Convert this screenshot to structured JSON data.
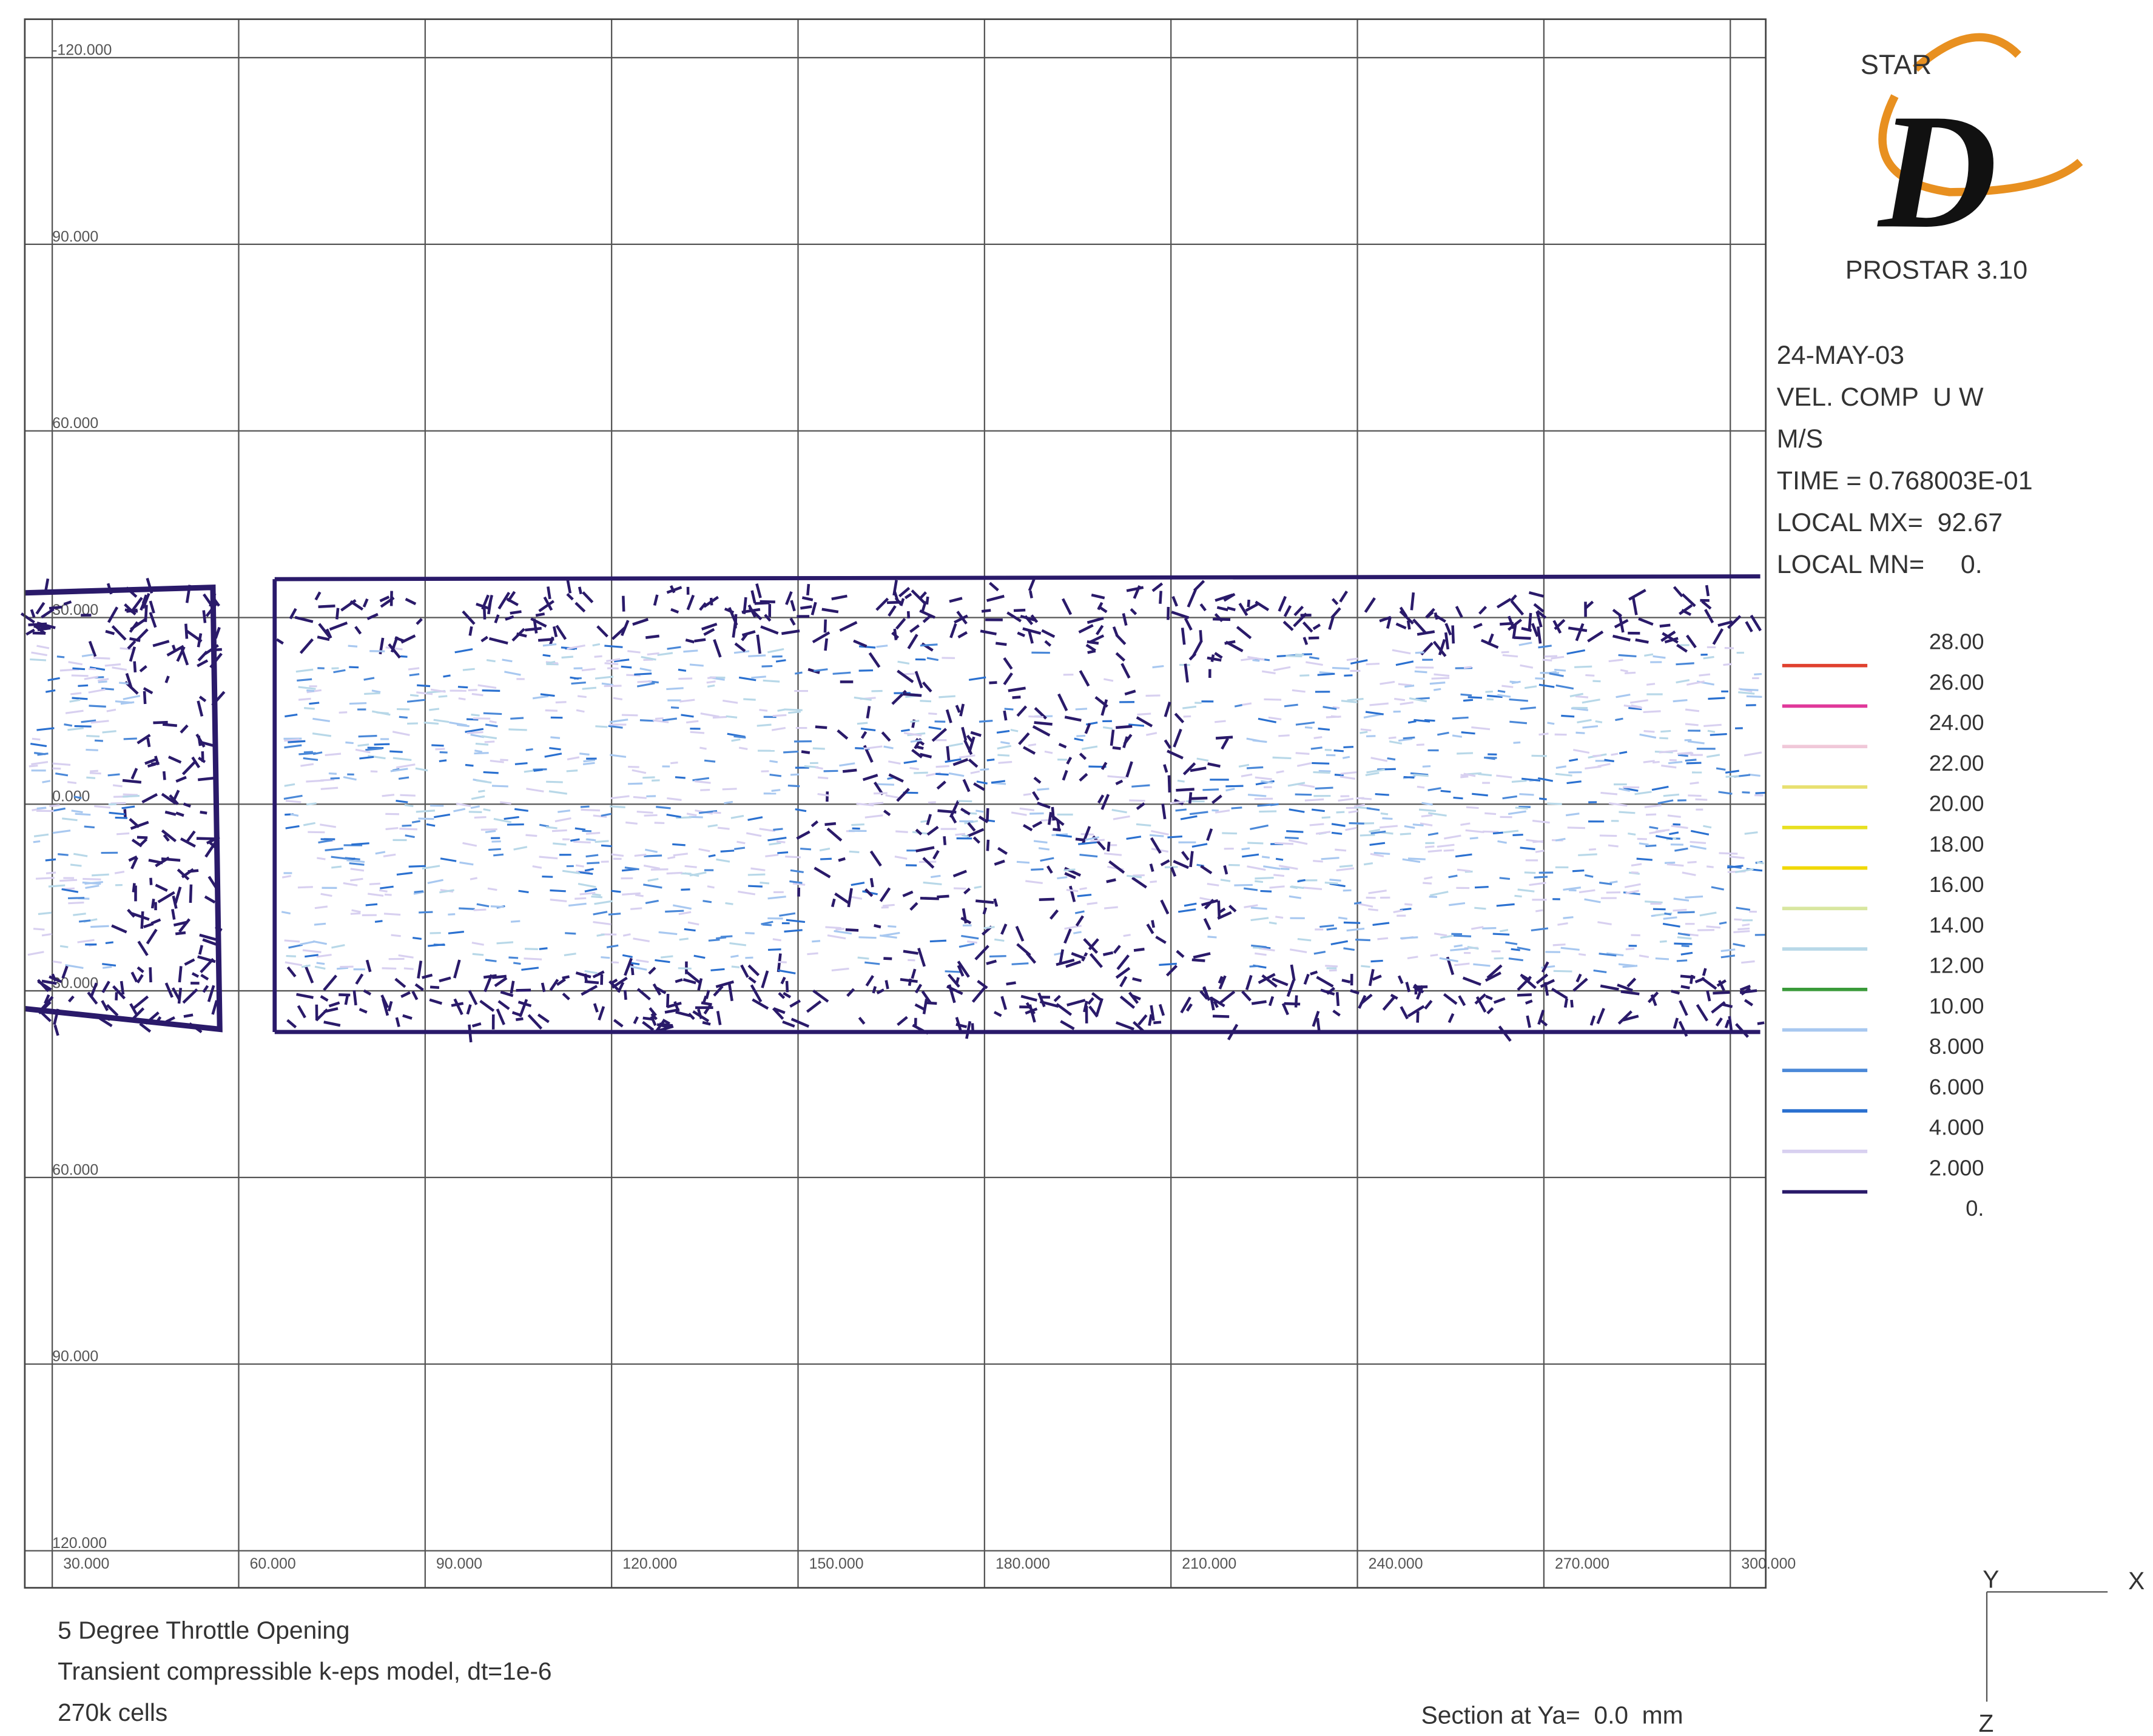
{
  "logo": {
    "star": "STAR",
    "letter": "D",
    "product": "PROSTAR 3.10"
  },
  "info": [
    "24-MAY-03",
    "VEL. COMP  U W",
    "M/S",
    "TIME = 0.768003E-01",
    "LOCAL MX=  92.67",
    "LOCAL MN=     0."
  ],
  "legend": {
    "labels": [
      "28.00",
      "26.00",
      "24.00",
      "22.00",
      "20.00",
      "18.00",
      "16.00",
      "14.00",
      "12.00",
      "10.00",
      "8.000",
      "6.000",
      "4.000",
      "2.000",
      "0."
    ],
    "colors": [
      "#e0402e",
      "#e0389a",
      "#f0c8d8",
      "#e8e070",
      "#e8e020",
      "#f0d800",
      "#d8e6a0",
      "#b8d8e8",
      "#3a9a3a",
      "#a8c8f0",
      "#4a88d8",
      "#2a70d0",
      "#d8d0f0",
      "#2a1a6a"
    ]
  },
  "axes": {
    "x_labels": [
      "30.000",
      "60.000",
      "90.000",
      "120.000",
      "150.000",
      "180.000",
      "210.000",
      "240.000",
      "270.000",
      "300.000"
    ],
    "y_labels": [
      "-120.000",
      "90.000",
      "60.000",
      "30.000",
      "0.000",
      "30.000",
      "60.000",
      "90.000",
      "120.000"
    ]
  },
  "footer": {
    "lines": [
      "5 Degree Throttle Opening",
      "Transient compressible k-eps model, dt=1e-6",
      "270k cells"
    ],
    "section": "Section at Ya=  0.0  mm"
  },
  "triad": {
    "y": "Y",
    "x": "X",
    "z": "Z"
  }
}
